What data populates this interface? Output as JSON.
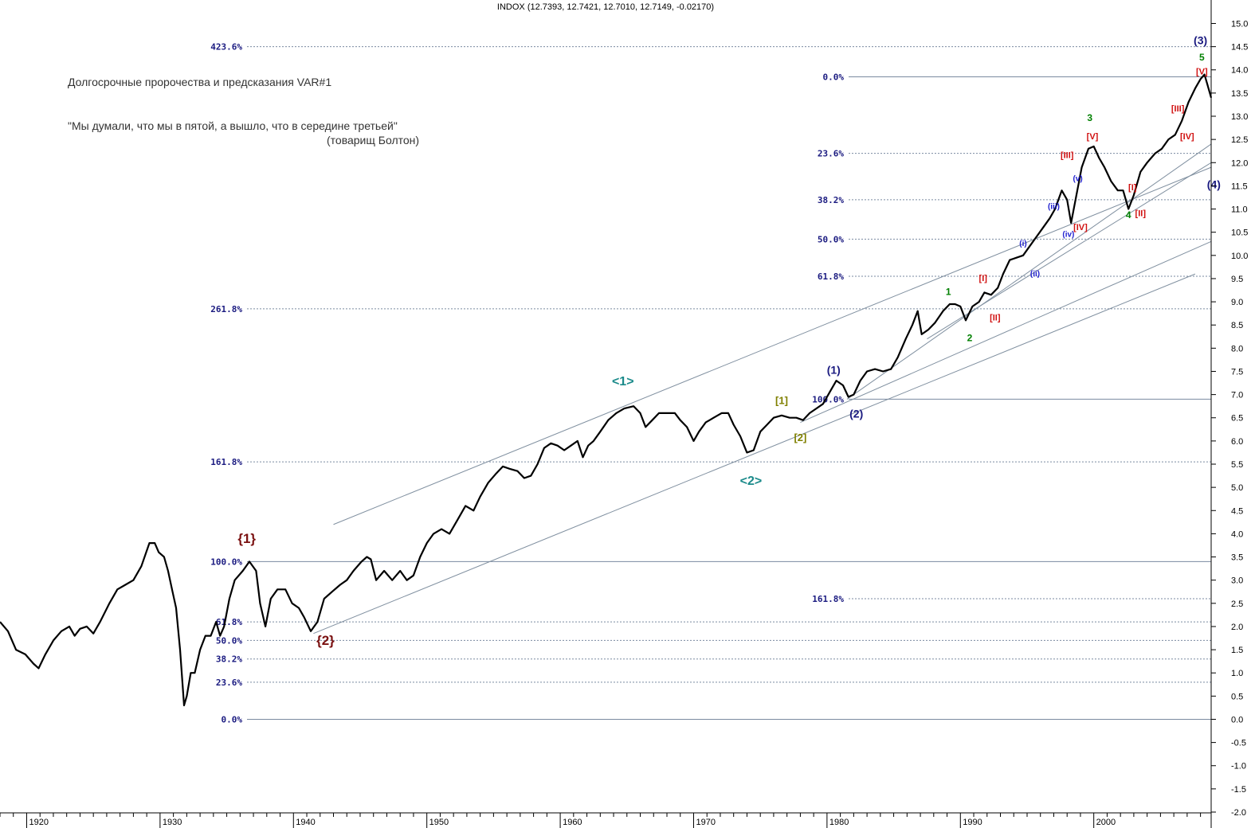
{
  "header": {
    "ohlc_text": "INDOX (12.7393, 12.7421, 12.7010, 12.7149, -0.02170)"
  },
  "notes": {
    "line1": "Долгосрочные пророчества и предсказания VAR#1",
    "line2": "\"Мы думали, что мы в пятой, а вышло, что в середине третьей\"",
    "line3": "(товарищ Болтон)"
  },
  "chart_data": {
    "type": "line",
    "x_range": [
      1918.0,
      2008.8
    ],
    "y_range": [
      -2.0,
      15.3
    ],
    "right_axis_ticks": [
      "15.0",
      "14.5",
      "14.0",
      "13.5",
      "13.0",
      "12.5",
      "12.0",
      "11.5",
      "11.0",
      "10.5",
      "10.0",
      "9.5",
      "9.0",
      "8.5",
      "8.0",
      "7.5",
      "7.0",
      "6.5",
      "6.0",
      "5.5",
      "5.0",
      "4.5",
      "4.0",
      "3.5",
      "3.0",
      "2.5",
      "2.0",
      "1.5",
      "1.0",
      "0.5",
      "0.0",
      "-0.5",
      "-1.0",
      "-1.5",
      "-2.0"
    ],
    "x_ticks": [
      "1920",
      "1930",
      "1940",
      "1950",
      "1960",
      "1970",
      "1980",
      "1990",
      "2000"
    ],
    "series": [
      {
        "points": [
          [
            1918.0,
            2.1
          ],
          [
            1918.6,
            1.9
          ],
          [
            1919.2,
            1.5
          ],
          [
            1919.9,
            1.4
          ],
          [
            1920.5,
            1.2
          ],
          [
            1920.9,
            1.1
          ],
          [
            1921.4,
            1.4
          ],
          [
            1922.0,
            1.7
          ],
          [
            1922.6,
            1.9
          ],
          [
            1923.2,
            2.0
          ],
          [
            1923.6,
            1.8
          ],
          [
            1924.0,
            1.95
          ],
          [
            1924.5,
            2.0
          ],
          [
            1925.0,
            1.85
          ],
          [
            1925.5,
            2.1
          ],
          [
            1926.2,
            2.5
          ],
          [
            1926.8,
            2.8
          ],
          [
            1927.4,
            2.9
          ],
          [
            1928.0,
            3.0
          ],
          [
            1928.6,
            3.3
          ],
          [
            1929.2,
            3.8
          ],
          [
            1929.6,
            3.8
          ],
          [
            1929.9,
            3.6
          ],
          [
            1930.3,
            3.5
          ],
          [
            1930.6,
            3.2
          ],
          [
            1930.9,
            2.8
          ],
          [
            1931.2,
            2.4
          ],
          [
            1931.5,
            1.5
          ],
          [
            1931.8,
            0.3
          ],
          [
            1932.0,
            0.5
          ],
          [
            1932.3,
            1.0
          ],
          [
            1932.6,
            1.0
          ],
          [
            1933.0,
            1.5
          ],
          [
            1933.4,
            1.8
          ],
          [
            1933.8,
            1.8
          ],
          [
            1934.2,
            2.1
          ],
          [
            1934.5,
            1.8
          ],
          [
            1934.8,
            2.0
          ],
          [
            1935.2,
            2.6
          ],
          [
            1935.6,
            3.0
          ],
          [
            1936.2,
            3.2
          ],
          [
            1936.7,
            3.4
          ],
          [
            1937.2,
            3.2
          ],
          [
            1937.5,
            2.5
          ],
          [
            1937.9,
            2.0
          ],
          [
            1938.3,
            2.6
          ],
          [
            1938.8,
            2.8
          ],
          [
            1939.4,
            2.8
          ],
          [
            1939.9,
            2.5
          ],
          [
            1940.4,
            2.4
          ],
          [
            1940.8,
            2.2
          ],
          [
            1941.3,
            1.9
          ],
          [
            1941.8,
            2.1
          ],
          [
            1942.3,
            2.6
          ],
          [
            1942.9,
            2.75
          ],
          [
            1943.5,
            2.9
          ],
          [
            1944.0,
            3.0
          ],
          [
            1944.5,
            3.2
          ],
          [
            1945.1,
            3.4
          ],
          [
            1945.5,
            3.5
          ],
          [
            1945.8,
            3.45
          ],
          [
            1946.2,
            3.0
          ],
          [
            1946.8,
            3.2
          ],
          [
            1947.4,
            3.0
          ],
          [
            1948.0,
            3.2
          ],
          [
            1948.5,
            3.0
          ],
          [
            1949.0,
            3.1
          ],
          [
            1949.5,
            3.5
          ],
          [
            1950.0,
            3.8
          ],
          [
            1950.5,
            4.0
          ],
          [
            1951.1,
            4.1
          ],
          [
            1951.7,
            4.0
          ],
          [
            1952.3,
            4.3
          ],
          [
            1952.9,
            4.6
          ],
          [
            1953.5,
            4.5
          ],
          [
            1954.0,
            4.8
          ],
          [
            1954.6,
            5.1
          ],
          [
            1955.2,
            5.3
          ],
          [
            1955.7,
            5.45
          ],
          [
            1956.2,
            5.4
          ],
          [
            1956.8,
            5.35
          ],
          [
            1957.3,
            5.2
          ],
          [
            1957.8,
            5.25
          ],
          [
            1958.3,
            5.5
          ],
          [
            1958.8,
            5.85
          ],
          [
            1959.3,
            5.95
          ],
          [
            1959.8,
            5.9
          ],
          [
            1960.3,
            5.8
          ],
          [
            1960.8,
            5.9
          ],
          [
            1961.3,
            6.0
          ],
          [
            1961.7,
            5.65
          ],
          [
            1962.1,
            5.9
          ],
          [
            1962.5,
            6.0
          ],
          [
            1963.0,
            6.2
          ],
          [
            1963.6,
            6.45
          ],
          [
            1964.2,
            6.6
          ],
          [
            1964.8,
            6.7
          ],
          [
            1965.5,
            6.75
          ],
          [
            1966.0,
            6.6
          ],
          [
            1966.4,
            6.3
          ],
          [
            1966.9,
            6.45
          ],
          [
            1967.4,
            6.6
          ],
          [
            1968.0,
            6.6
          ],
          [
            1968.6,
            6.6
          ],
          [
            1969.0,
            6.45
          ],
          [
            1969.5,
            6.3
          ],
          [
            1970.0,
            6.0
          ],
          [
            1970.4,
            6.2
          ],
          [
            1970.9,
            6.4
          ],
          [
            1971.5,
            6.5
          ],
          [
            1972.1,
            6.6
          ],
          [
            1972.6,
            6.6
          ],
          [
            1973.0,
            6.35
          ],
          [
            1973.5,
            6.1
          ],
          [
            1974.0,
            5.75
          ],
          [
            1974.5,
            5.8
          ],
          [
            1975.0,
            6.2
          ],
          [
            1975.5,
            6.35
          ],
          [
            1976.0,
            6.5
          ],
          [
            1976.6,
            6.55
          ],
          [
            1977.2,
            6.5
          ],
          [
            1977.7,
            6.5
          ],
          [
            1978.2,
            6.45
          ],
          [
            1978.7,
            6.6
          ],
          [
            1979.2,
            6.7
          ],
          [
            1979.7,
            6.8
          ],
          [
            1980.2,
            7.05
          ],
          [
            1980.7,
            7.3
          ],
          [
            1981.2,
            7.2
          ],
          [
            1981.6,
            6.95
          ],
          [
            1982.0,
            7.0
          ],
          [
            1982.5,
            7.3
          ],
          [
            1983.0,
            7.5
          ],
          [
            1983.6,
            7.55
          ],
          [
            1984.2,
            7.5
          ],
          [
            1984.8,
            7.55
          ],
          [
            1985.3,
            7.8
          ],
          [
            1985.9,
            8.2
          ],
          [
            1986.4,
            8.5
          ],
          [
            1986.8,
            8.8
          ],
          [
            1987.1,
            8.3
          ],
          [
            1987.6,
            8.4
          ],
          [
            1988.1,
            8.55
          ],
          [
            1988.7,
            8.8
          ],
          [
            1989.2,
            8.95
          ],
          [
            1989.6,
            8.95
          ],
          [
            1990.0,
            8.9
          ],
          [
            1990.4,
            8.6
          ],
          [
            1990.9,
            8.9
          ],
          [
            1991.4,
            9.0
          ],
          [
            1991.8,
            9.2
          ],
          [
            1992.3,
            9.15
          ],
          [
            1992.8,
            9.3
          ],
          [
            1993.2,
            9.6
          ],
          [
            1993.7,
            9.9
          ],
          [
            1994.2,
            9.95
          ],
          [
            1994.7,
            10.0
          ],
          [
            1995.2,
            10.2
          ],
          [
            1995.7,
            10.4
          ],
          [
            1996.2,
            10.6
          ],
          [
            1996.7,
            10.8
          ],
          [
            1997.1,
            11.0
          ],
          [
            1997.6,
            11.4
          ],
          [
            1998.0,
            11.2
          ],
          [
            1998.3,
            10.7
          ],
          [
            1998.7,
            11.3
          ],
          [
            1999.1,
            11.9
          ],
          [
            1999.6,
            12.3
          ],
          [
            2000.0,
            12.35
          ],
          [
            2000.4,
            12.1
          ],
          [
            2000.8,
            11.9
          ],
          [
            2001.3,
            11.6
          ],
          [
            2001.8,
            11.4
          ],
          [
            2002.2,
            11.4
          ],
          [
            2002.6,
            11.0
          ],
          [
            2003.0,
            11.3
          ],
          [
            2003.5,
            11.8
          ],
          [
            2004.0,
            12.0
          ],
          [
            2004.6,
            12.2
          ],
          [
            2005.1,
            12.3
          ],
          [
            2005.6,
            12.5
          ],
          [
            2006.1,
            12.6
          ],
          [
            2006.6,
            12.9
          ],
          [
            2007.1,
            13.3
          ],
          [
            2007.6,
            13.6
          ],
          [
            2008.0,
            13.8
          ],
          [
            2008.3,
            13.9
          ],
          [
            2008.5,
            13.7
          ],
          [
            2008.8,
            13.4
          ]
        ]
      }
    ],
    "fib_left": [
      {
        "label": "423.6%",
        "y": 14.5
      },
      {
        "label": "261.8%",
        "y": 8.85
      },
      {
        "label": "161.8%",
        "y": 5.55
      },
      {
        "label": "100.0%",
        "y": 3.4
      },
      {
        "label": "61.8%",
        "y": 2.1
      },
      {
        "label": "50.0%",
        "y": 1.7
      },
      {
        "label": "38.2%",
        "y": 1.3
      },
      {
        "label": "23.6%",
        "y": 0.8
      },
      {
        "label": "0.0%",
        "y": 0.0
      }
    ],
    "fib_right": [
      {
        "label": "0.0%",
        "y": 13.85
      },
      {
        "label": "23.6%",
        "y": 12.2
      },
      {
        "label": "38.2%",
        "y": 11.2
      },
      {
        "label": "50.0%",
        "y": 10.35
      },
      {
        "label": "61.8%",
        "y": 9.55
      },
      {
        "label": "100.0%",
        "y": 6.9
      },
      {
        "label": "161.8%",
        "y": 2.6
      }
    ],
    "wave_labels": [
      {
        "text": "{1}",
        "x": 1936.5,
        "y": 3.8,
        "color": "#7a1010",
        "size": 17
      },
      {
        "text": "{2}",
        "x": 1942.4,
        "y": 1.6,
        "color": "#7a1010",
        "size": 17
      },
      {
        "text": "<1>",
        "x": 1964.7,
        "y": 7.2,
        "color": "#1a8a8a",
        "size": 16
      },
      {
        "text": "<2>",
        "x": 1974.3,
        "y": 5.05,
        "color": "#1a8a8a",
        "size": 16
      },
      {
        "text": "[1]",
        "x": 1976.6,
        "y": 6.8,
        "color": "#808000",
        "size": 13
      },
      {
        "text": "[2]",
        "x": 1978.0,
        "y": 6.0,
        "color": "#808000",
        "size": 13
      },
      {
        "text": "(1)",
        "x": 1980.5,
        "y": 7.45,
        "color": "#1a1a80",
        "size": 14
      },
      {
        "text": "(2)",
        "x": 1982.2,
        "y": 6.5,
        "color": "#1a1a80",
        "size": 14
      },
      {
        "text": "(3)",
        "x": 2008.0,
        "y": 14.55,
        "color": "#1a1a80",
        "size": 14
      },
      {
        "text": "(4)",
        "x": 2009.0,
        "y": 11.45,
        "color": "#1a1a80",
        "size": 14
      },
      {
        "text": "1",
        "x": 1989.1,
        "y": 9.15,
        "color": "#008000",
        "size": 12
      },
      {
        "text": "2",
        "x": 1990.7,
        "y": 8.15,
        "color": "#008000",
        "size": 12
      },
      {
        "text": "3",
        "x": 1999.7,
        "y": 12.9,
        "color": "#008000",
        "size": 12
      },
      {
        "text": "4",
        "x": 2002.6,
        "y": 10.8,
        "color": "#008000",
        "size": 12
      },
      {
        "text": "5",
        "x": 2008.1,
        "y": 14.2,
        "color": "#008000",
        "size": 12
      },
      {
        "text": "[I]",
        "x": 1991.7,
        "y": 9.45,
        "color": "#d01010",
        "size": 11
      },
      {
        "text": "[II]",
        "x": 1992.6,
        "y": 8.6,
        "color": "#d01010",
        "size": 11
      },
      {
        "text": "[III]",
        "x": 1998.0,
        "y": 12.1,
        "color": "#d01010",
        "size": 11
      },
      {
        "text": "[IV]",
        "x": 1999.0,
        "y": 10.55,
        "color": "#d01010",
        "size": 11
      },
      {
        "text": "[V]",
        "x": 1999.9,
        "y": 12.5,
        "color": "#d01010",
        "size": 11
      },
      {
        "text": "[I]",
        "x": 2002.9,
        "y": 11.4,
        "color": "#d01010",
        "size": 11
      },
      {
        "text": "[II]",
        "x": 2003.5,
        "y": 10.85,
        "color": "#d01010",
        "size": 11
      },
      {
        "text": "[III]",
        "x": 2006.3,
        "y": 13.1,
        "color": "#d01010",
        "size": 11
      },
      {
        "text": "[IV]",
        "x": 2007.0,
        "y": 12.5,
        "color": "#d01010",
        "size": 11
      },
      {
        "text": "[V]",
        "x": 2008.1,
        "y": 13.9,
        "color": "#d01010",
        "size": 11
      },
      {
        "text": "(i)",
        "x": 1994.7,
        "y": 10.2,
        "color": "#2020d0",
        "size": 10
      },
      {
        "text": "(ii)",
        "x": 1995.6,
        "y": 9.55,
        "color": "#2020d0",
        "size": 10
      },
      {
        "text": "(iii)",
        "x": 1997.0,
        "y": 11.0,
        "color": "#2020d0",
        "size": 10
      },
      {
        "text": "(iv)",
        "x": 1998.1,
        "y": 10.4,
        "color": "#2020d0",
        "size": 10
      },
      {
        "text": "(v)",
        "x": 1998.8,
        "y": 11.6,
        "color": "#2020d0",
        "size": 10
      }
    ],
    "trend_lines": [
      {
        "x1": 1943.0,
        "y1": 4.2,
        "x2": 2008.8,
        "y2": 11.9
      },
      {
        "x1": 1941.5,
        "y1": 1.85,
        "x2": 2007.6,
        "y2": 9.6
      },
      {
        "x1": 1978.0,
        "y1": 6.4,
        "x2": 2008.8,
        "y2": 10.3
      },
      {
        "x1": 1981.5,
        "y1": 6.9,
        "x2": 2008.8,
        "y2": 12.4
      },
      {
        "x1": 1987.5,
        "y1": 8.2,
        "x2": 2008.8,
        "y2": 12.0
      }
    ]
  }
}
